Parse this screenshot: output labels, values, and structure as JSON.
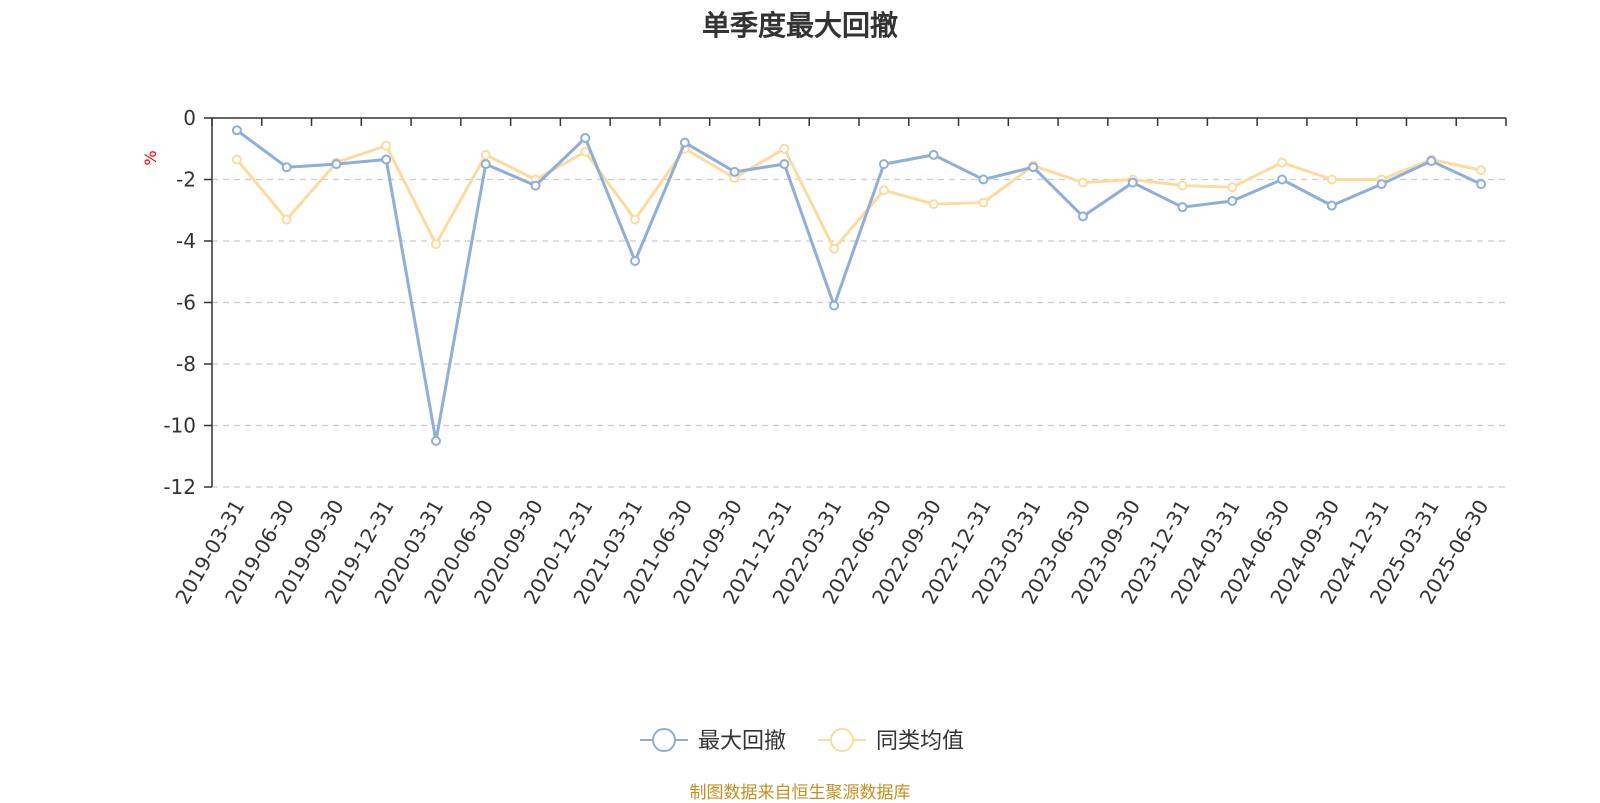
{
  "title": "单季度最大回撤",
  "source": "制图数据来自恒生聚源数据库",
  "chart_data": {
    "type": "line",
    "title": "单季度最大回撤",
    "ylabel": "%",
    "xlabel": "",
    "ylim": [
      -12,
      0
    ],
    "yticks": [
      0,
      -2,
      -4,
      -6,
      -8,
      -10,
      -12
    ],
    "grid": true,
    "legend_position": "bottom-center",
    "categories": [
      "2019-03-31",
      "2019-06-30",
      "2019-09-30",
      "2019-12-31",
      "2020-03-31",
      "2020-06-30",
      "2020-09-30",
      "2020-12-31",
      "2021-03-31",
      "2021-06-30",
      "2021-09-30",
      "2021-12-31",
      "2022-03-31",
      "2022-06-30",
      "2022-09-30",
      "2022-12-31",
      "2023-03-31",
      "2023-06-30",
      "2023-09-30",
      "2023-12-31",
      "2024-03-31",
      "2024-06-30",
      "2024-09-30",
      "2024-12-31",
      "2025-03-31",
      "2025-06-30"
    ],
    "series": [
      {
        "name": "最大回撤",
        "color": "#8eaedb",
        "values": [
          -0.4,
          -1.6,
          -1.5,
          -1.35,
          -10.5,
          -1.5,
          -2.2,
          -0.65,
          -4.65,
          -0.8,
          -1.75,
          -1.5,
          -6.1,
          -1.5,
          -1.2,
          -2.0,
          -1.6,
          -3.2,
          -2.1,
          -2.9,
          -2.7,
          -2.0,
          -2.85,
          -2.15,
          -1.4,
          -2.15
        ]
      },
      {
        "name": "同类均值",
        "color": "#fcdc9e",
        "values": [
          -1.35,
          -3.3,
          -1.45,
          -0.9,
          -4.1,
          -1.2,
          -2.0,
          -1.1,
          -3.3,
          -1.0,
          -1.95,
          -1.0,
          -4.25,
          -2.35,
          -2.8,
          -2.75,
          -1.55,
          -2.1,
          -2.0,
          -2.2,
          -2.25,
          -1.45,
          -2.0,
          -2.0,
          -1.35,
          -1.7
        ]
      }
    ]
  }
}
